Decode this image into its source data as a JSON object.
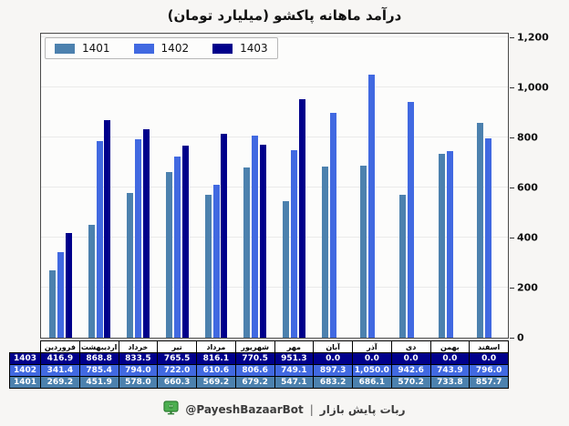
{
  "title": "درآمد ماهانه پاکشو (میلیارد تومان)",
  "legend": [
    {
      "label": "1401",
      "color": "#4c81ae"
    },
    {
      "label": "1402",
      "color": "#4169e1"
    },
    {
      "label": "1403",
      "color": "#00008b"
    }
  ],
  "y_axis": {
    "ticks": [
      {
        "label": "1,200",
        "value": 1200
      },
      {
        "label": "1,000",
        "value": 1000
      },
      {
        "label": "800",
        "value": 800
      },
      {
        "label": "600",
        "value": 600
      },
      {
        "label": "400",
        "value": 400
      },
      {
        "label": "200",
        "value": 200
      },
      {
        "label": "0",
        "value": 0
      }
    ]
  },
  "chart_data": {
    "type": "bar",
    "title": "درآمد ماهانه پاکشو (میلیارد تومان)",
    "categories": [
      "فروردین",
      "اردیبهشت",
      "خرداد",
      "تیر",
      "مرداد",
      "شهریور",
      "مهر",
      "آبان",
      "آذر",
      "دی",
      "بهمن",
      "اسفند"
    ],
    "series": [
      {
        "name": "1401",
        "color": "#4c81ae",
        "values": [
          269.2,
          451.9,
          578.0,
          660.3,
          569.2,
          679.2,
          547.1,
          683.2,
          686.1,
          570.2,
          733.8,
          857.7
        ]
      },
      {
        "name": "1402",
        "color": "#4169e1",
        "values": [
          341.4,
          785.4,
          794.0,
          722.0,
          610.6,
          806.6,
          749.1,
          897.3,
          1050.0,
          942.6,
          743.9,
          796.0
        ]
      },
      {
        "name": "1403",
        "color": "#00008b",
        "values": [
          416.9,
          868.8,
          833.5,
          765.5,
          816.1,
          770.5,
          951.3,
          0.0,
          0.0,
          0.0,
          0.0,
          0.0
        ]
      }
    ],
    "ylim": [
      0,
      1200
    ],
    "grid": true,
    "legend_position": "upper left",
    "y_axis_side": "right"
  },
  "table": {
    "rows": [
      {
        "label": "1403",
        "color": "#00008b",
        "values": [
          "416.9",
          "868.8",
          "833.5",
          "765.5",
          "816.1",
          "770.5",
          "951.3",
          "0.0",
          "0.0",
          "0.0",
          "0.0",
          "0.0"
        ]
      },
      {
        "label": "1402",
        "color": "#4169e1",
        "values": [
          "341.4",
          "785.4",
          "794.0",
          "722.0",
          "610.6",
          "806.6",
          "749.1",
          "897.3",
          "1,050.0",
          "942.6",
          "743.9",
          "796.0"
        ]
      },
      {
        "label": "1401",
        "color": "#4c81ae",
        "values": [
          "269.2",
          "451.9",
          "578.0",
          "660.3",
          "569.2",
          "679.2",
          "547.1",
          "683.2",
          "686.1",
          "570.2",
          "733.8",
          "857.7"
        ]
      }
    ]
  },
  "footer": {
    "icon": "green-monitor-icon",
    "icon_color": "#4caf50",
    "handle": "@PayeshBazaarBot",
    "separator": "|",
    "text": "ربات پایش بازار"
  }
}
